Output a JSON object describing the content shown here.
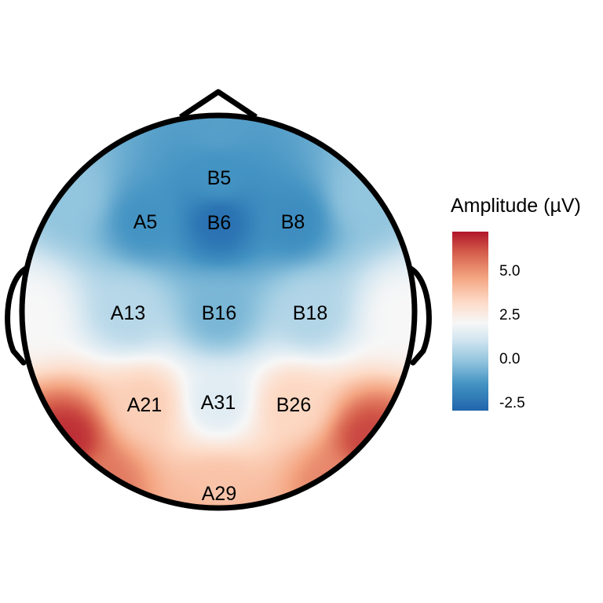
{
  "chart_data": {
    "type": "heatmap",
    "subtype": "eeg-topographic-map",
    "legend": {
      "title": "Amplitude (µV)",
      "ticks": [
        5.0,
        2.5,
        0.0,
        -2.5
      ],
      "tick_labels": [
        "5.0",
        "2.5",
        "0.0",
        "-2.5"
      ],
      "range": [
        -3.0,
        7.2
      ],
      "placement": "right"
    },
    "colors": {
      "low": "#2166ac",
      "mid": "#f7f7f7",
      "high": "#b2182b",
      "outline": "#000000"
    },
    "channels": [
      {
        "name": "B5",
        "value": -1.5
      },
      {
        "name": "A5",
        "value": -1.5
      },
      {
        "name": "B6",
        "value": -2.6
      },
      {
        "name": "B8",
        "value": -1.7
      },
      {
        "name": "A13",
        "value": 0.5
      },
      {
        "name": "B16",
        "value": -0.6
      },
      {
        "name": "B18",
        "value": 0.4
      },
      {
        "name": "A21",
        "value": 3.5
      },
      {
        "name": "A31",
        "value": 1.4
      },
      {
        "name": "B26",
        "value": 3.3
      },
      {
        "name": "A29",
        "value": 3.8
      }
    ],
    "grid": false
  }
}
